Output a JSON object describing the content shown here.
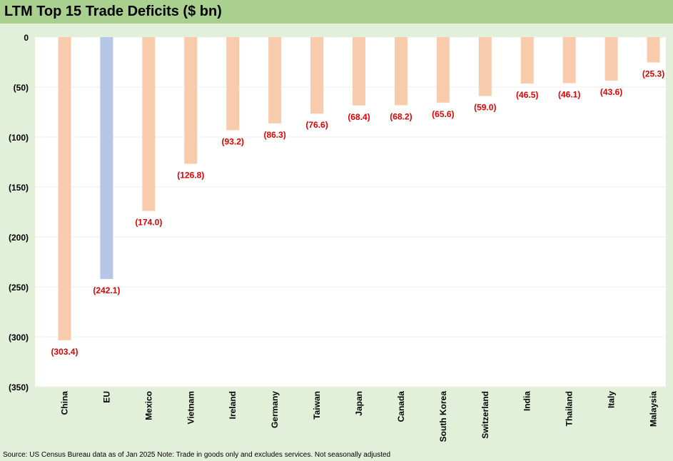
{
  "chart_data": {
    "type": "bar",
    "title": "LTM Top 15 Trade Deficits ($ bn)",
    "categories": [
      "China",
      "EU",
      "Mexico",
      "Vietnam",
      "Ireland",
      "Germany",
      "Taiwan",
      "Japan",
      "Canada",
      "South Korea",
      "Switzerland",
      "India",
      "Thailand",
      "Italy",
      "Malaysia"
    ],
    "values": [
      -303.4,
      -242.1,
      -174.0,
      -126.8,
      -93.2,
      -86.3,
      -76.6,
      -68.4,
      -68.2,
      -65.6,
      -59.0,
      -46.5,
      -46.1,
      -43.6,
      -25.3
    ],
    "data_labels": [
      "(303.4)",
      "(242.1)",
      "(174.0)",
      "(126.8)",
      "(93.2)",
      "(86.3)",
      "(76.6)",
      "(68.4)",
      "(68.2)",
      "(65.6)",
      "(59.0)",
      "(46.5)",
      "(46.1)",
      "(43.6)",
      "(25.3)"
    ],
    "ylim": [
      -350,
      0
    ],
    "yticks": [
      0,
      -50,
      -100,
      -150,
      -200,
      -250,
      -300,
      -350
    ],
    "ytick_labels": [
      "0",
      "(50)",
      "(100)",
      "(150)",
      "(200)",
      "(250)",
      "(300)",
      "(350)"
    ],
    "xlabel": "",
    "ylabel": "",
    "grid": true,
    "legend": "none",
    "colors": {
      "bar_default": "#f8cbad",
      "bar_highlight": "#b4c7e7",
      "data_label": "#e00000",
      "gridline": "#eeeeee",
      "title_band": "#a9d08e",
      "background": "#e2efd9"
    },
    "highlight_category": "EU"
  },
  "footer": {
    "source": "Source: US Census Bureau data as of Jan 2025 Note: Trade in goods only and excludes services. Not seasonally adjusted"
  }
}
